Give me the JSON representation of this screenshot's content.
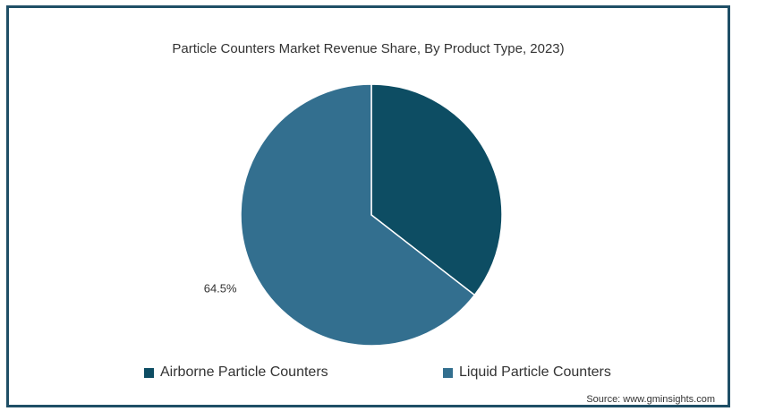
{
  "chart_data": {
    "type": "pie",
    "title": "Particle Counters Market Revenue Share, By Product Type, 2023)",
    "categories": [
      "Airborne Particle Counters",
      "Liquid Particle Counters"
    ],
    "values": [
      35.5,
      64.5
    ],
    "data_labels": [
      "",
      "64.5%"
    ],
    "colors": [
      "#0d4d63",
      "#336f8f"
    ],
    "legend_position": "bottom",
    "start_angle": "top, clockwise"
  },
  "source": "Source: www.gminsights.com"
}
